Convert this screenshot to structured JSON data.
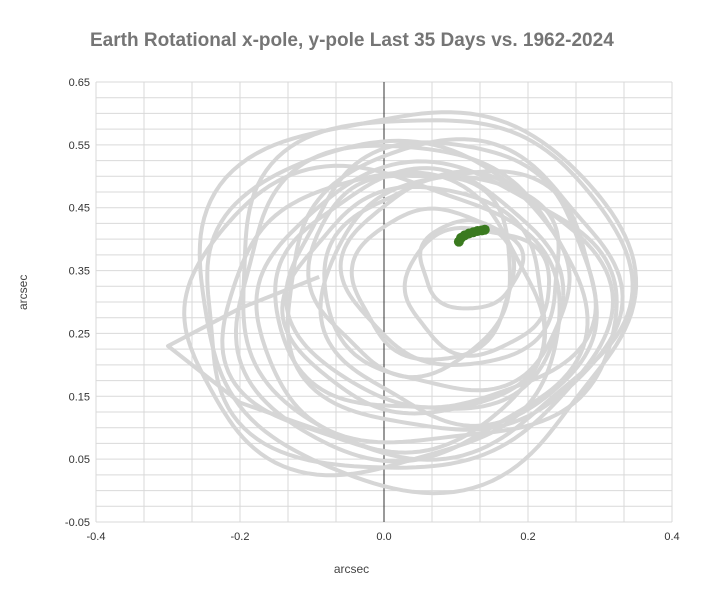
{
  "chart_data": {
    "type": "scatter",
    "title": "Earth Rotational x-pole, y-pole Last 35 Days vs. 1962-2024",
    "xlabel": "arcsec",
    "ylabel": "arcsec",
    "xlim": [
      -0.4,
      0.4
    ],
    "ylim": [
      -0.05,
      0.65
    ],
    "x_ticks": [
      -0.4,
      -0.2,
      0.0,
      0.2,
      0.4
    ],
    "x_tick_labels": [
      "-0.4",
      "-0.2",
      "0.0",
      "0.2",
      "0.4"
    ],
    "y_ticks": [
      -0.05,
      0.05,
      0.15,
      0.25,
      0.35,
      0.45,
      0.55,
      0.65
    ],
    "y_tick_labels": [
      "-0.05",
      "0.05",
      "0.15",
      "0.25",
      "0.35",
      "0.45",
      "0.55",
      "0.65"
    ],
    "grid": true,
    "series": [
      {
        "color": "#d6d6d6",
        "loops": [
          {
            "cx": 0.04,
            "cy": 0.31,
            "rx": 0.3,
            "ry": 0.3
          },
          {
            "cx": 0.06,
            "cy": 0.33,
            "rx": 0.27,
            "ry": 0.27
          },
          {
            "cx": 0.03,
            "cy": 0.3,
            "rx": 0.24,
            "ry": 0.25
          },
          {
            "cx": 0.08,
            "cy": 0.34,
            "rx": 0.21,
            "ry": 0.21
          },
          {
            "cx": 0.05,
            "cy": 0.3,
            "rx": 0.18,
            "ry": 0.18
          },
          {
            "cx": 0.1,
            "cy": 0.35,
            "rx": 0.15,
            "ry": 0.15
          },
          {
            "cx": 0.07,
            "cy": 0.33,
            "rx": 0.11,
            "ry": 0.12
          },
          {
            "cx": 0.12,
            "cy": 0.36,
            "rx": 0.07,
            "ry": 0.07
          },
          {
            "cx": 0.02,
            "cy": 0.29,
            "rx": 0.28,
            "ry": 0.26
          },
          {
            "cx": 0.09,
            "cy": 0.32,
            "rx": 0.23,
            "ry": 0.23
          },
          {
            "cx": 0.0,
            "cy": 0.28,
            "rx": 0.22,
            "ry": 0.22
          },
          {
            "cx": 0.11,
            "cy": 0.31,
            "rx": 0.19,
            "ry": 0.2
          },
          {
            "cx": 0.04,
            "cy": 0.35,
            "rx": 0.14,
            "ry": 0.16
          },
          {
            "cx": 0.13,
            "cy": 0.32,
            "rx": 0.1,
            "ry": 0.1
          },
          {
            "cx": -0.02,
            "cy": 0.27,
            "rx": 0.26,
            "ry": 0.24
          },
          {
            "cx": 0.07,
            "cy": 0.29,
            "rx": 0.25,
            "ry": 0.22
          },
          {
            "cx": 0.05,
            "cy": 0.31,
            "rx": 0.2,
            "ry": 0.19
          },
          {
            "cx": 0.09,
            "cy": 0.33,
            "rx": 0.17,
            "ry": 0.17
          }
        ],
        "outlier": [
          [
            -0.09,
            0.34
          ],
          [
            -0.2,
            0.29
          ],
          [
            -0.3,
            0.23
          ],
          [
            -0.2,
            0.14
          ],
          [
            0.0,
            0.06
          ]
        ]
      },
      {
        "color": "#3a7a1f",
        "points": [
          [
            0.104,
            0.396
          ],
          [
            0.107,
            0.402
          ],
          [
            0.112,
            0.406
          ],
          [
            0.118,
            0.409
          ],
          [
            0.124,
            0.411
          ],
          [
            0.13,
            0.413
          ],
          [
            0.136,
            0.414
          ],
          [
            0.14,
            0.415
          ]
        ]
      }
    ]
  }
}
